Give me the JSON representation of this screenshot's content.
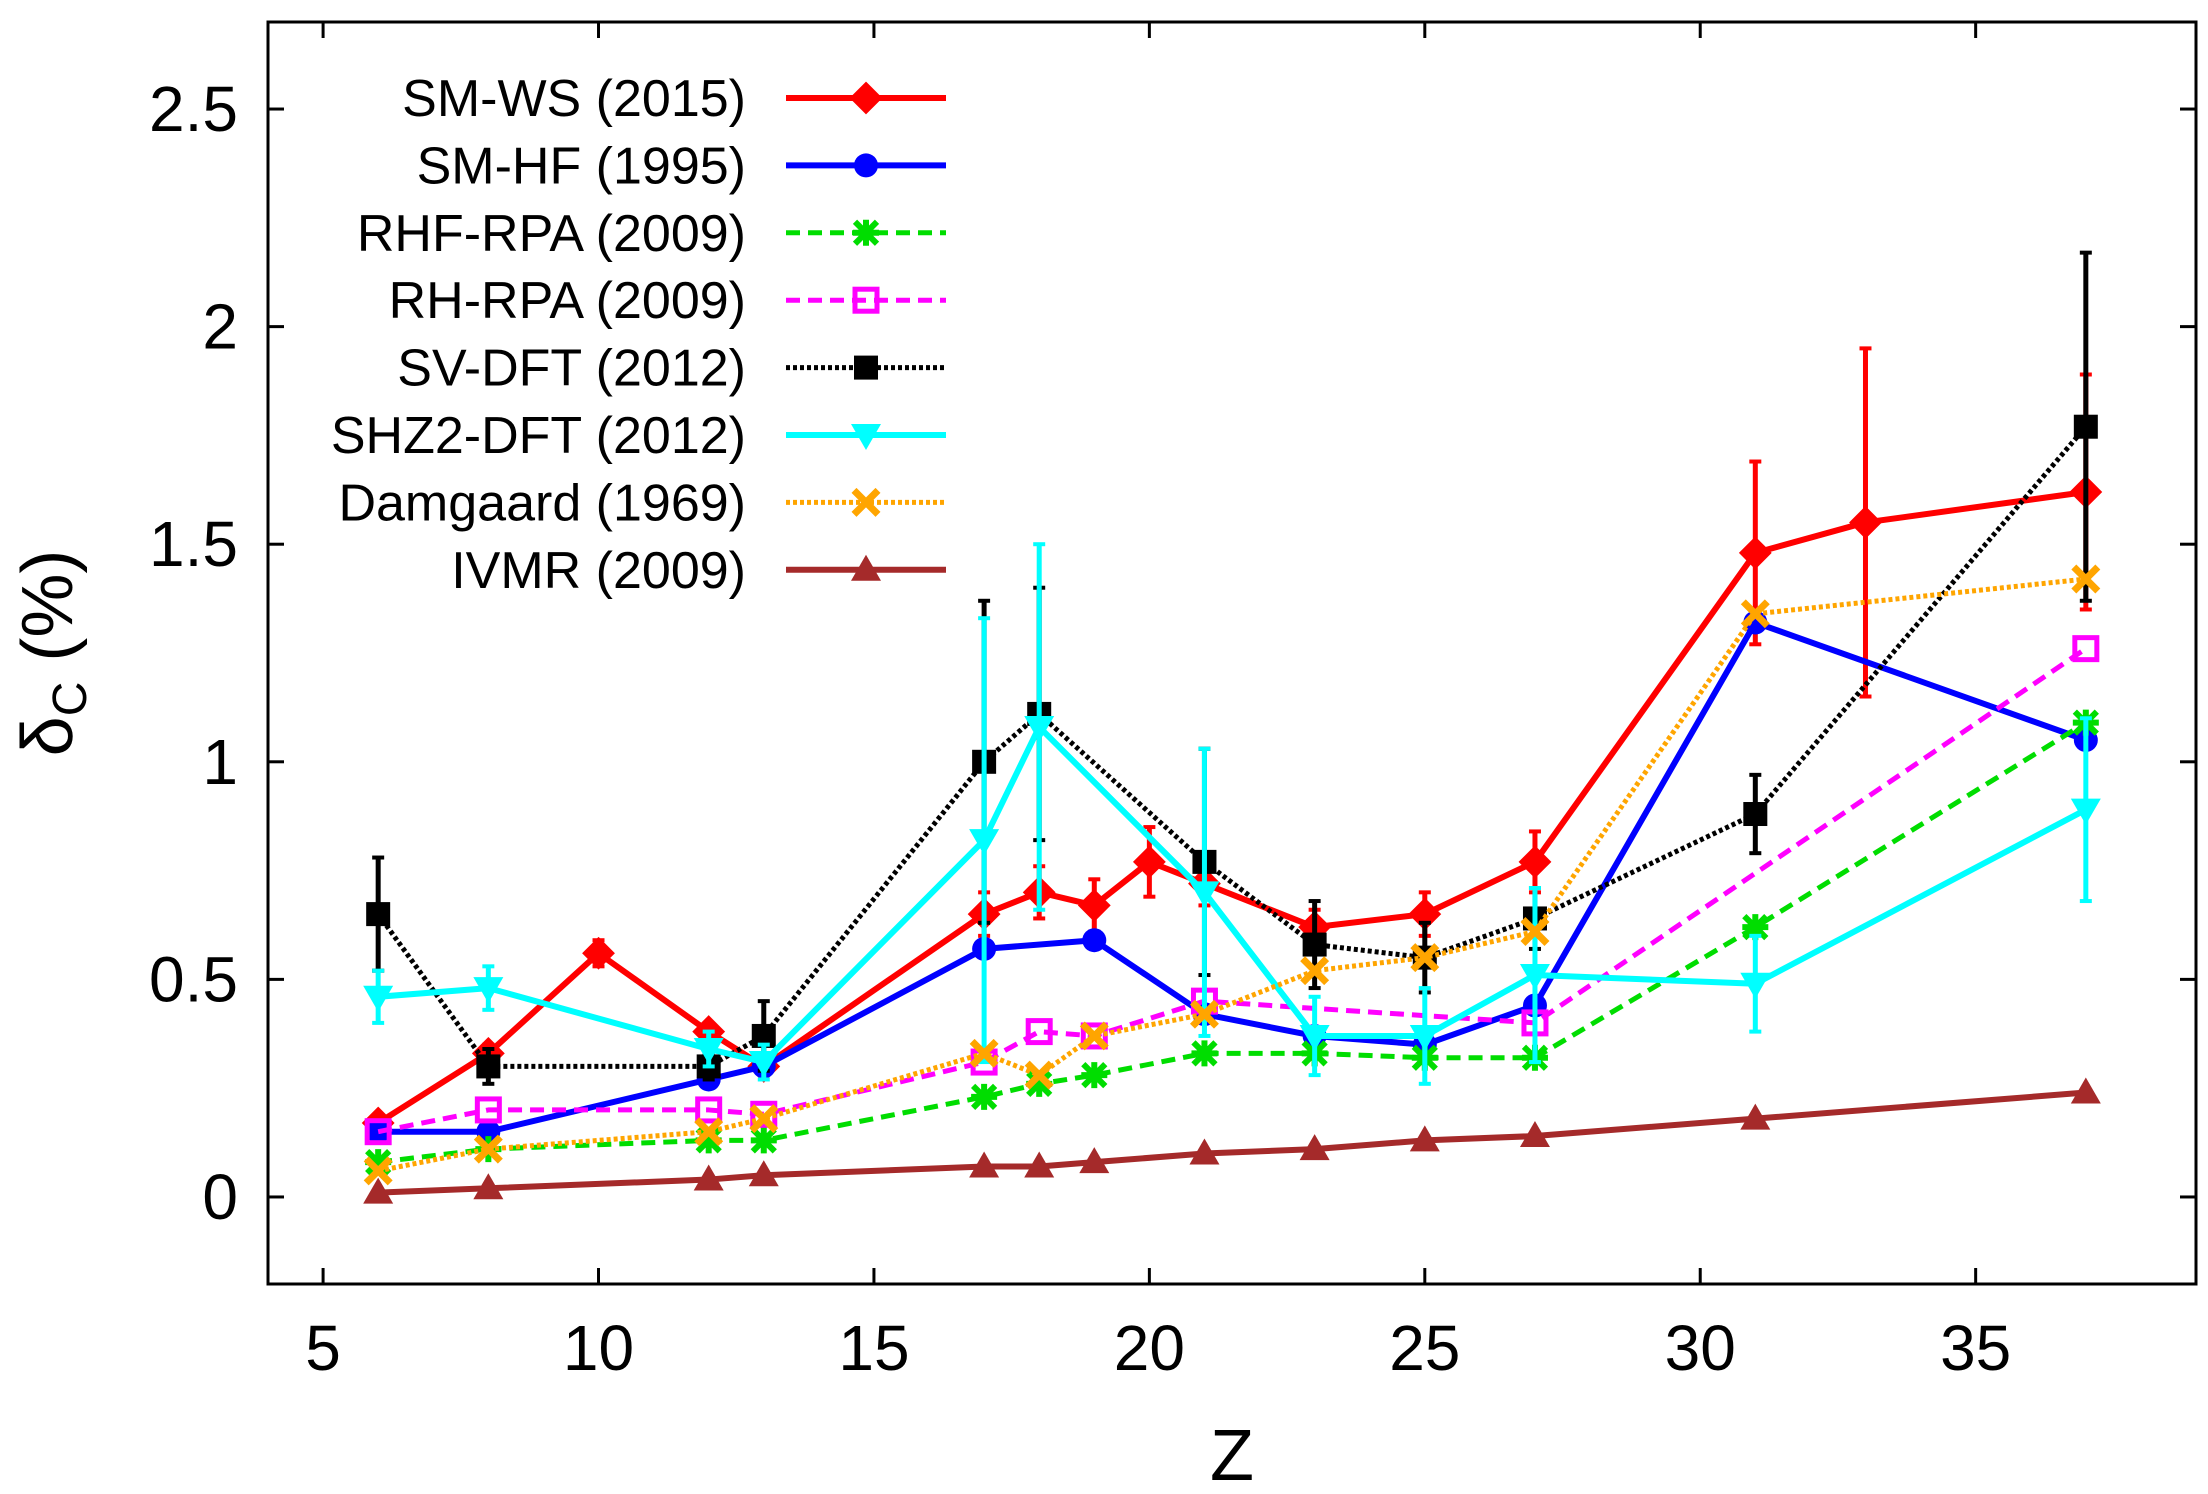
{
  "chart_data": {
    "type": "line",
    "title": "",
    "xlabel": "Z",
    "ylabel_main": "δ",
    "ylabel_sub": "C",
    "ylabel_suffix": " (%)",
    "xlim": [
      4,
      39
    ],
    "ylim": [
      -0.2,
      2.7
    ],
    "xticks": [
      5,
      10,
      15,
      20,
      25,
      30,
      35
    ],
    "yticks": [
      0,
      0.5,
      1,
      1.5,
      2,
      2.5
    ],
    "ytick_labels": [
      "0",
      "0.5",
      "1",
      "1.5",
      "2",
      "2.5"
    ],
    "grid": false,
    "legend_position": "top-left",
    "series": [
      {
        "name": "SM-WS (2015)",
        "color": "#ff0000",
        "marker": "diamond",
        "dash": "solid",
        "x": [
          6,
          8,
          10,
          12,
          13,
          17,
          18,
          19,
          20,
          21,
          23,
          25,
          27,
          31,
          33,
          37
        ],
        "y": [
          0.17,
          0.33,
          0.56,
          0.38,
          0.3,
          0.65,
          0.7,
          0.67,
          0.77,
          0.72,
          0.62,
          0.65,
          0.77,
          1.48,
          1.55,
          1.62
        ],
        "err": [
          0.01,
          0.02,
          0.03,
          0.01,
          0.01,
          0.05,
          0.06,
          0.06,
          0.08,
          0.05,
          0.04,
          0.05,
          0.07,
          0.21,
          0.4,
          0.27
        ]
      },
      {
        "name": "SM-HF (1995)",
        "color": "#0000ff",
        "marker": "circle",
        "dash": "solid",
        "x": [
          6,
          8,
          12,
          13,
          17,
          19,
          21,
          23,
          25,
          27,
          31,
          37
        ],
        "y": [
          0.15,
          0.15,
          0.27,
          0.3,
          0.57,
          0.59,
          0.42,
          0.37,
          0.35,
          0.44,
          1.32,
          1.05
        ],
        "err": []
      },
      {
        "name": "RHF-RPA (2009)",
        "color": "#00dd00",
        "marker": "star",
        "dash": "dashed",
        "x": [
          6,
          8,
          12,
          13,
          17,
          18,
          19,
          21,
          23,
          25,
          27,
          31,
          37
        ],
        "y": [
          0.08,
          0.11,
          0.13,
          0.13,
          0.23,
          0.26,
          0.28,
          0.33,
          0.33,
          0.32,
          0.32,
          0.62,
          1.09
        ],
        "err": []
      },
      {
        "name": "RH-RPA (2009)",
        "color": "#ff00ff",
        "marker": "open-square",
        "dash": "dashed",
        "x": [
          6,
          8,
          12,
          13,
          17,
          18,
          19,
          21,
          27,
          37
        ],
        "y": [
          0.15,
          0.2,
          0.2,
          0.19,
          0.31,
          0.38,
          0.37,
          0.45,
          0.4,
          1.26
        ],
        "err": []
      },
      {
        "name": "SV-DFT (2012)",
        "color": "#000000",
        "marker": "square",
        "dash": "dotted",
        "x": [
          6,
          8,
          12,
          13,
          17,
          18,
          21,
          23,
          25,
          27,
          31,
          37
        ],
        "y": [
          0.65,
          0.3,
          0.3,
          0.37,
          1.0,
          1.11,
          0.77,
          0.58,
          0.55,
          0.64,
          0.88,
          1.77
        ],
        "err": [
          0.13,
          0.04,
          0.03,
          0.08,
          0.37,
          0.29,
          0.26,
          0.1,
          0.08,
          0.07,
          0.09,
          0.4
        ]
      },
      {
        "name": "SHZ2-DFT (2012)",
        "color": "#00ffff",
        "marker": "triangle-down",
        "dash": "solid",
        "x": [
          6,
          8,
          12,
          13,
          17,
          18,
          21,
          23,
          25,
          27,
          31,
          37
        ],
        "y": [
          0.46,
          0.48,
          0.34,
          0.31,
          0.82,
          1.08,
          0.7,
          0.37,
          0.37,
          0.51,
          0.49,
          0.89
        ],
        "err": [
          0.06,
          0.05,
          0.04,
          0.04,
          0.51,
          0.42,
          0.33,
          0.09,
          0.11,
          0.2,
          0.11,
          0.21
        ]
      },
      {
        "name": "Damgaard (1969)",
        "color": "#ffa500",
        "marker": "cross",
        "dash": "dotted",
        "x": [
          6,
          8,
          12,
          13,
          17,
          18,
          19,
          21,
          23,
          25,
          27,
          31,
          37
        ],
        "y": [
          0.06,
          0.11,
          0.15,
          0.18,
          0.33,
          0.28,
          0.37,
          0.42,
          0.52,
          0.55,
          0.61,
          1.34,
          1.42
        ],
        "err": []
      },
      {
        "name": "IVMR (2009)",
        "color": "#a52a2a",
        "marker": "triangle-up",
        "dash": "solid",
        "x": [
          6,
          8,
          12,
          13,
          17,
          18,
          19,
          21,
          23,
          25,
          27,
          31,
          37
        ],
        "y": [
          0.01,
          0.02,
          0.04,
          0.05,
          0.07,
          0.07,
          0.08,
          0.1,
          0.11,
          0.13,
          0.14,
          0.18,
          0.24
        ],
        "err": []
      }
    ]
  }
}
